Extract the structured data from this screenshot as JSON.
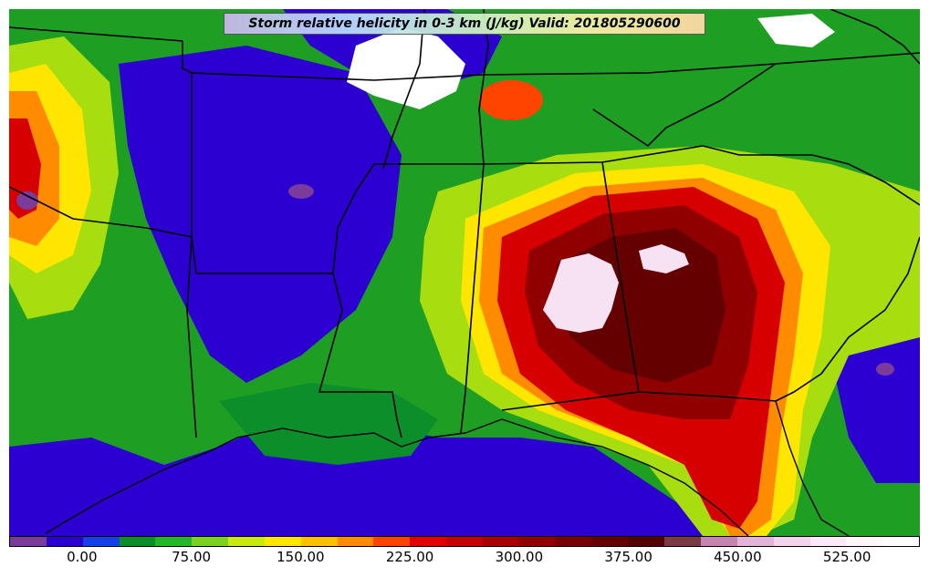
{
  "title": "Storm relative helicity in 0-3 km (J/kg) Valid: 201805290600",
  "colorbar": {
    "ticks": [
      "0.00",
      "75.00",
      "150.00",
      "225.00",
      "300.00",
      "375.00",
      "450.00",
      "525.00"
    ],
    "tick_values": [
      0,
      75,
      150,
      225,
      300,
      375,
      450,
      525
    ],
    "range": [
      -50,
      575
    ],
    "colors": [
      "#7a3b9a",
      "#2b00d0",
      "#1640e8",
      "#0c8f2a",
      "#23b52a",
      "#7ad11f",
      "#c8ea10",
      "#ffe600",
      "#ffc000",
      "#ff8c00",
      "#ff4400",
      "#e20000",
      "#c40000",
      "#a80000",
      "#900000",
      "#780000",
      "#650000",
      "#540000",
      "#7a3a45",
      "#c583b0",
      "#e4b3d8",
      "#f3d3ee",
      "#fbe8f8",
      "#fff6fc",
      "#ffffff"
    ]
  },
  "map": {
    "description_hidden": "",
    "colors": {
      "ocean_low": "#2b00d0",
      "green": "#1f9e24",
      "lime": "#a8dd10",
      "yellow": "#ffe600",
      "red": "#d60000",
      "darkred": "#7a0000",
      "pink": "#f0d0ec",
      "white": "#ffffff",
      "purple": "#7a3b9a"
    }
  }
}
